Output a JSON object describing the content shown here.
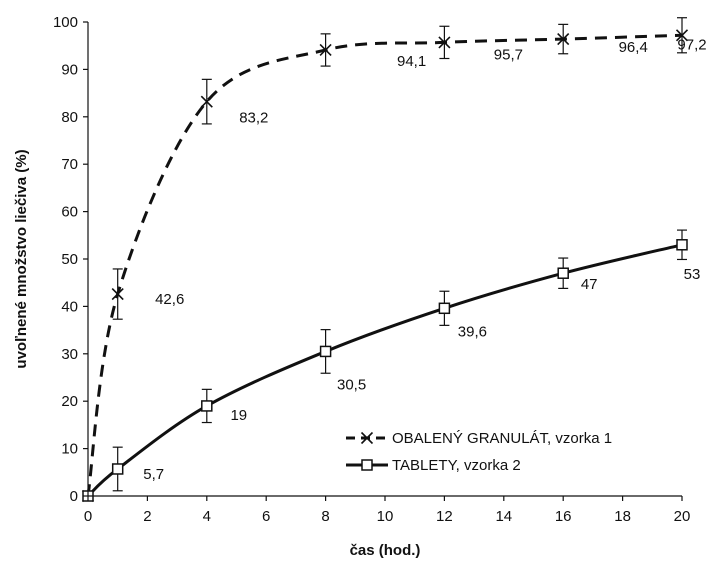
{
  "chart_data": {
    "type": "line",
    "title": "",
    "xlabel": "čas (hod.)",
    "ylabel": "uvoľnené množstvo liečiva (%)",
    "xlim": [
      0,
      20
    ],
    "ylim": [
      0,
      100
    ],
    "xticks": [
      0,
      2,
      4,
      6,
      8,
      10,
      12,
      14,
      16,
      18,
      20
    ],
    "yticks": [
      0,
      10,
      20,
      30,
      40,
      50,
      60,
      70,
      80,
      90,
      100
    ],
    "grid": false,
    "legend_position": "bottom-right",
    "series": [
      {
        "name": "OBALENÝ GRANULÁT, vzorka 1",
        "style": "dashed",
        "marker": "x",
        "color": "#111111",
        "x": [
          0,
          1,
          4,
          8,
          12,
          16,
          20
        ],
        "y": [
          0,
          42.6,
          83.2,
          94.1,
          95.7,
          96.4,
          97.2
        ],
        "error": [
          0,
          5.3,
          4.7,
          3.4,
          3.4,
          3.1,
          3.7
        ],
        "labels": [
          "",
          "42,6",
          "83,2",
          "94,1",
          "95,7",
          "96,4",
          "97,2"
        ]
      },
      {
        "name": "TABLETY, vzorka 2",
        "style": "solid",
        "marker": "square",
        "color": "#111111",
        "x": [
          0,
          1,
          4,
          8,
          12,
          16,
          20
        ],
        "y": [
          0,
          5.7,
          19,
          30.5,
          39.6,
          47,
          53
        ],
        "error": [
          0,
          4.6,
          3.5,
          4.6,
          3.6,
          3.2,
          3.1
        ],
        "labels": [
          "",
          "5,7",
          "19",
          "30,5",
          "39,6",
          "47",
          "53"
        ]
      }
    ]
  }
}
